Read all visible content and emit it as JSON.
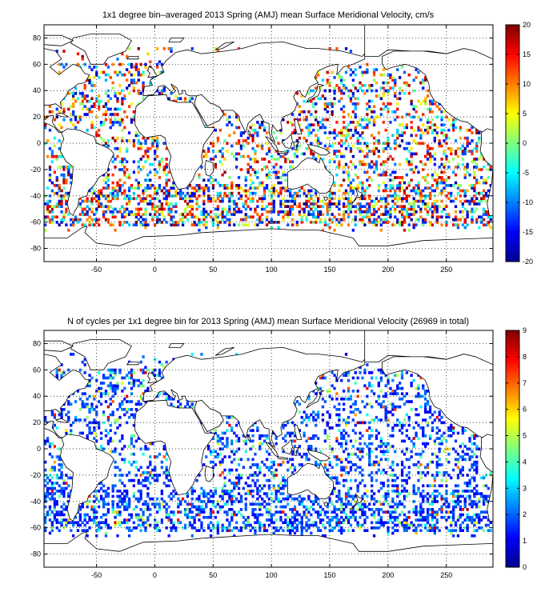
{
  "chart_data": [
    {
      "type": "heatmap",
      "title": "1x1 degree bin–averaged 2013 Spring (AMJ) mean Surface Meridional Velocity, cm/s",
      "xlim": [
        -95,
        290
      ],
      "ylim": [
        -90,
        90
      ],
      "xticks": [
        -50,
        0,
        50,
        100,
        150,
        200,
        250
      ],
      "yticks": [
        -80,
        -60,
        -40,
        -20,
        0,
        20,
        40,
        60,
        80
      ],
      "grid": true,
      "colorbar": {
        "min": -20,
        "max": 20,
        "ticks": [
          -20,
          -15,
          -10,
          -5,
          0,
          5,
          10,
          15,
          20
        ],
        "colormap": "jet",
        "placement": "right"
      },
      "value_distribution": "diverging"
    },
    {
      "type": "heatmap",
      "title": "N of cycles per 1x1 degree bin for 2013 Spring (AMJ) mean Surface Meridional Velocity (26969 in total)",
      "xlim": [
        -95,
        290
      ],
      "ylim": [
        -90,
        90
      ],
      "xticks": [
        -50,
        0,
        50,
        100,
        150,
        200,
        250
      ],
      "yticks": [
        -80,
        -60,
        -40,
        -20,
        0,
        20,
        40,
        60,
        80
      ],
      "grid": true,
      "colorbar": {
        "min": 0,
        "max": 9,
        "ticks": [
          0,
          1,
          2,
          3,
          4,
          5,
          6,
          7,
          8,
          9
        ],
        "colormap": "jet",
        "placement": "right"
      },
      "value_distribution": "low-counts"
    }
  ],
  "colors": {
    "land": "#ffffff",
    "coastline": "#000000",
    "grid": "#000000"
  }
}
